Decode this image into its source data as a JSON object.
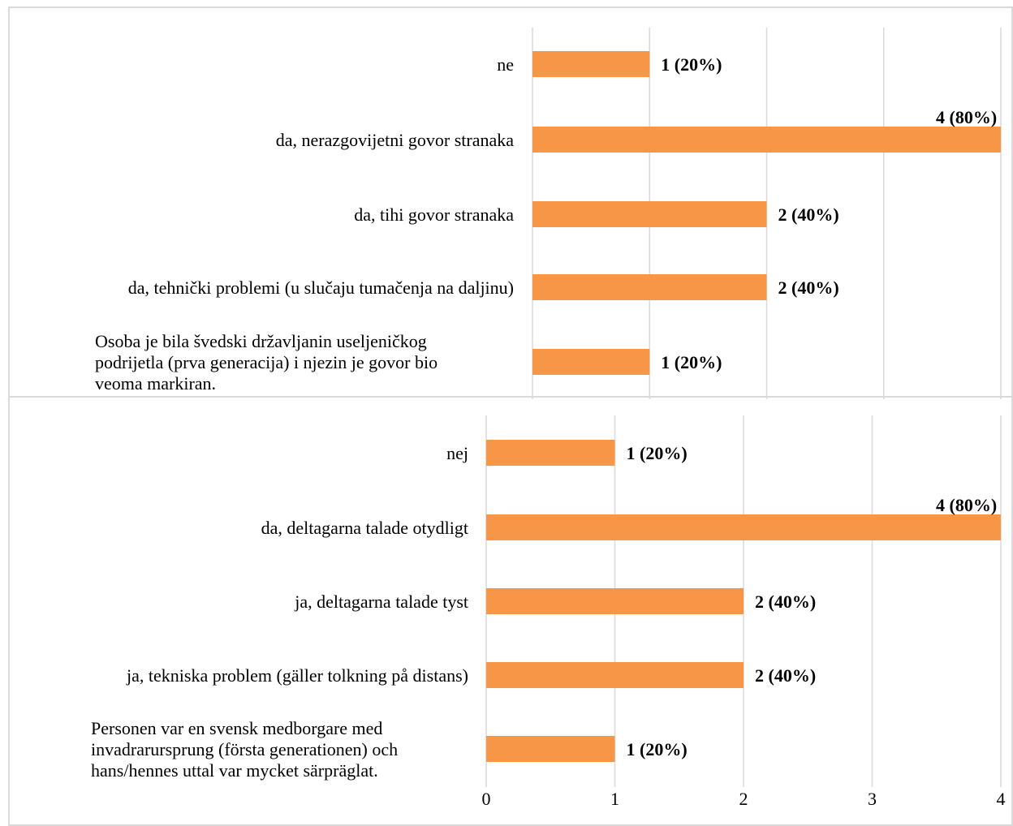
{
  "chart_data": [
    {
      "type": "bar",
      "orientation": "horizontal",
      "categories": [
        "ne",
        "da, nerazgovijetni govor stranaka",
        "da, tihi govor stranaka",
        "da, tehnički problemi (u slučaju tumačenja na daljinu)",
        "Osoba je bila švedski državljanin useljeničkog podrijetla (prva generacija) i njezin je govor bio veoma markiran."
      ],
      "category_lines": [
        [
          "ne"
        ],
        [
          "da, nerazgovijetni govor stranaka"
        ],
        [
          "da, tihi govor stranaka"
        ],
        [
          "da, tehnički problemi (u slučaju tumačenja na daljinu)"
        ],
        [
          "Osoba je bila švedski državljanin useljeničkog",
          "podrijetla (prva generacija) i njezin je govor bio",
          "veoma markiran."
        ]
      ],
      "values": [
        1,
        4,
        2,
        2,
        1
      ],
      "data_labels": [
        "1 (20%)",
        "4 (80%)",
        "2 (40%)",
        "2 (40%)",
        "1 (20%)"
      ],
      "xlim": [
        0,
        4
      ],
      "grid": true,
      "bar_color": "#f79646"
    },
    {
      "type": "bar",
      "orientation": "horizontal",
      "categories": [
        "nej",
        "da, deltagarna talade otydligt",
        "ja, deltagarna talade tyst",
        "ja, tekniska problem (gäller tolkning på distans)",
        "Personen var en svensk medborgare med invadrarursprung (första generationen) och hans/hennes uttal var mycket särpräglat."
      ],
      "category_lines": [
        [
          "nej"
        ],
        [
          "da, deltagarna talade otydligt"
        ],
        [
          "ja, deltagarna talade tyst"
        ],
        [
          "ja, tekniska problem (gäller tolkning på distans)"
        ],
        [
          "Personen var en svensk medborgare med",
          "invadrarursprung (första generationen) och",
          "hans/hennes uttal var mycket särpräglat."
        ]
      ],
      "values": [
        1,
        4,
        2,
        2,
        1
      ],
      "data_labels": [
        "1 (20%)",
        "4 (80%)",
        "2 (40%)",
        "2 (40%)",
        "1 (20%)"
      ],
      "x_ticks": [
        "0",
        "1",
        "2",
        "3",
        "4"
      ],
      "xlim": [
        0,
        4
      ],
      "grid": true,
      "bar_color": "#f79646"
    }
  ]
}
